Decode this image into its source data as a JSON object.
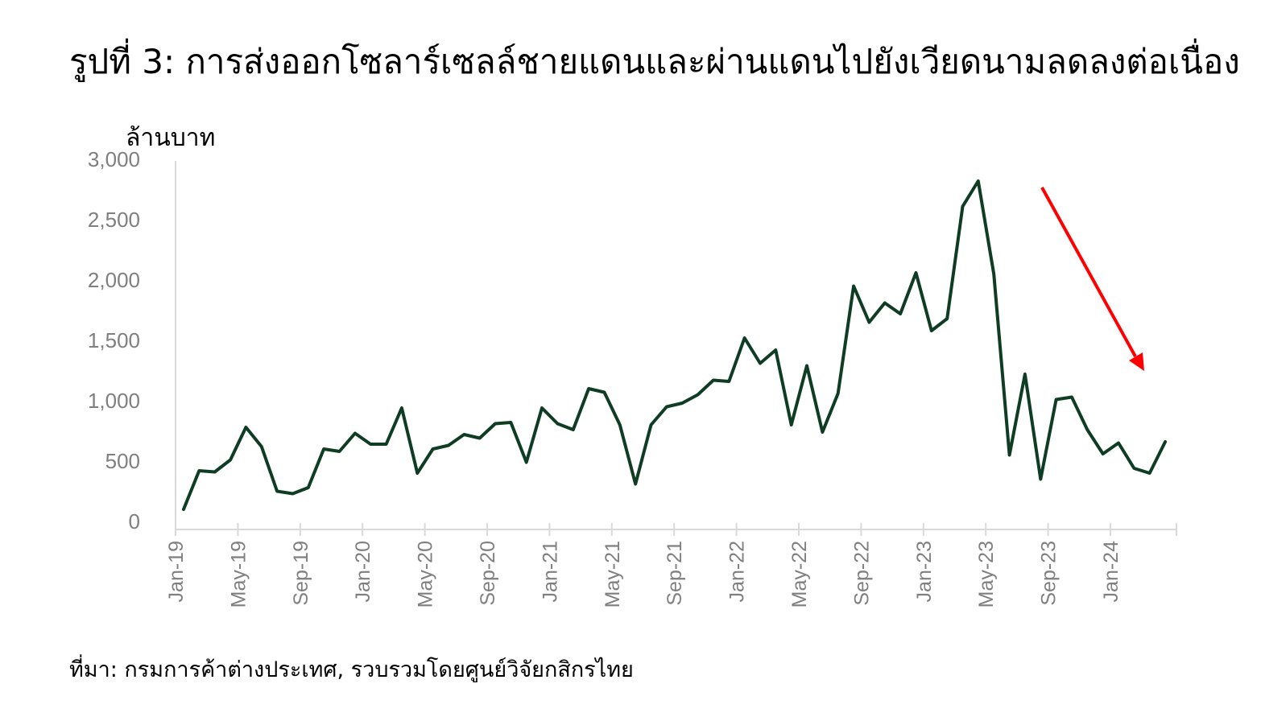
{
  "title": "รูปที่ 3: การส่งออกโซลาร์เซลล์ชายแดนและผ่านแดนไปยังเวียดนามลดลงต่อเนื่อง",
  "source": "ที่มา: กรมการค้าต่างประเทศ, รวบรวมโดยศูนย์วิจัยกสิกรไทย",
  "colors": {
    "line": "#0f3d23",
    "arrow": "#ff0000",
    "axis": "#d9d9d9",
    "tick_text": "#7f7f7f"
  },
  "chart_data": {
    "type": "line",
    "ylabel": "ล้านบาท",
    "ylim": [
      0,
      3000
    ],
    "yticks": [
      "0",
      "500",
      "1,000",
      "1,500",
      "2,000",
      "2,500",
      "3,000"
    ],
    "xtick_labels": [
      "Jan-19",
      "May-19",
      "Sep-19",
      "Jan-20",
      "May-20",
      "Sep-20",
      "Jan-21",
      "May-21",
      "Sep-21",
      "Jan-22",
      "May-22",
      "Sep-22",
      "Jan-23",
      "May-23",
      "Sep-23",
      "Jan-24"
    ],
    "grid": false,
    "legend": "none",
    "annotation": "red arrow pointing down, indicating continued decline from mid-2023",
    "series": [
      {
        "x": [
          "Jan-19",
          "Feb-19",
          "Mar-19",
          "Apr-19",
          "May-19",
          "Jun-19",
          "Jul-19",
          "Aug-19",
          "Sep-19",
          "Oct-19",
          "Nov-19",
          "Dec-19",
          "Jan-20",
          "Feb-20",
          "Mar-20",
          "Apr-20",
          "May-20",
          "Jun-20",
          "Jul-20",
          "Aug-20",
          "Sep-20",
          "Oct-20",
          "Nov-20",
          "Dec-20",
          "Jan-21",
          "Feb-21",
          "Mar-21",
          "Apr-21",
          "May-21",
          "Jun-21",
          "Jul-21",
          "Aug-21",
          "Sep-21",
          "Oct-21",
          "Nov-21",
          "Dec-21",
          "Jan-22",
          "Feb-22",
          "Mar-22",
          "Apr-22",
          "May-22",
          "Jun-22",
          "Jul-22",
          "Aug-22",
          "Sep-22",
          "Oct-22",
          "Nov-22",
          "Dec-22",
          "Jan-23",
          "Feb-23",
          "Mar-23",
          "Apr-23",
          "May-23",
          "Jun-23",
          "Jul-23",
          "Aug-23",
          "Sep-23",
          "Oct-23",
          "Nov-23",
          "Dec-23",
          "Jan-24",
          "Feb-24",
          "Mar-24",
          "Apr-24"
        ],
        "values": [
          100,
          420,
          410,
          510,
          780,
          620,
          250,
          230,
          280,
          600,
          580,
          730,
          640,
          640,
          940,
          400,
          600,
          630,
          720,
          690,
          810,
          820,
          490,
          940,
          810,
          760,
          1100,
          1070,
          800,
          310,
          800,
          950,
          980,
          1050,
          1170,
          1160,
          1520,
          1310,
          1420,
          800,
          1290,
          740,
          1060,
          1950,
          1650,
          1810,
          1720,
          2060,
          1580,
          1680,
          2610,
          2820,
          2050,
          550,
          1220,
          350,
          1010,
          1030,
          760,
          560,
          650,
          440,
          400,
          660
        ]
      }
    ]
  }
}
